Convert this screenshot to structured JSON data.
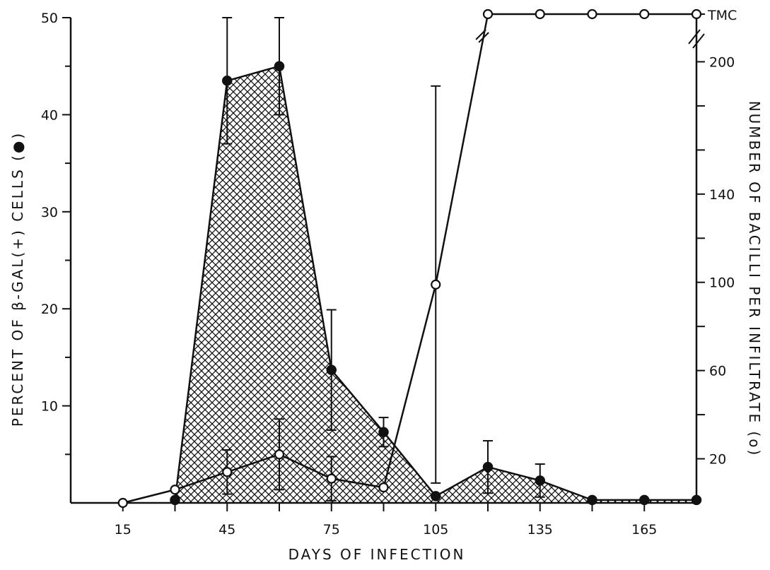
{
  "chart_data": {
    "type": "line",
    "xlabel": "DAYS OF INFECTION",
    "ylabel_left": "PERCENT OF β-GAL(+) CELLS (●)",
    "ylabel_right": "NUMBER OF BACILLI PER INFILTRATE (o)",
    "x_ticks": [
      15,
      45,
      75,
      105,
      135,
      165
    ],
    "x_minor_ticks": [
      30,
      60,
      90,
      120,
      150
    ],
    "xlim": [
      0,
      180
    ],
    "y_left_ticks": [
      10,
      20,
      30,
      40,
      50
    ],
    "y_left_lim": [
      0,
      50
    ],
    "y_right_ticks": [
      20,
      60,
      100,
      140,
      200
    ],
    "y_right_tick_labels": [
      "20",
      "60",
      "100",
      "140",
      "200"
    ],
    "y_right_top_label": "TMC",
    "y_right_lim": [
      0,
      220
    ],
    "series": [
      {
        "marker": "filled-circle",
        "axis": "left",
        "shaded": true,
        "x": [
          30,
          45,
          60,
          75,
          90,
          105,
          120,
          135,
          150,
          165,
          180
        ],
        "y": [
          0.3,
          43.5,
          45,
          13.7,
          7.3,
          0.7,
          3.7,
          2.3,
          0.3,
          0.3,
          0.3
        ],
        "error": [
          0,
          6.5,
          5,
          6.2,
          1.5,
          0,
          2.7,
          1.7,
          0,
          0,
          0
        ]
      },
      {
        "marker": "open-circle",
        "axis": "right",
        "x": [
          15,
          30,
          45,
          60,
          75,
          90,
          105,
          120,
          135,
          150,
          165,
          180
        ],
        "y": [
          0,
          6,
          14,
          22,
          11,
          7,
          99,
          "TMC",
          "TMC",
          "TMC",
          "TMC",
          "TMC"
        ],
        "error": [
          0,
          0,
          10,
          16,
          10,
          0,
          90,
          0,
          0,
          0,
          0,
          0
        ]
      }
    ]
  }
}
